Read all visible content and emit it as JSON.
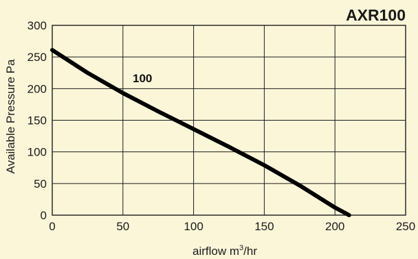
{
  "chart_data": {
    "type": "line",
    "title": "AXR100",
    "xlabel": "airflow m",
    "xlabel_sup": "3",
    "xlabel_suffix": "/hr",
    "ylabel": "Available Pressure Pa",
    "xlim": [
      0,
      250
    ],
    "ylim": [
      0,
      300
    ],
    "xticks": [
      "0",
      "50",
      "100",
      "150",
      "200",
      "250"
    ],
    "yticks": [
      "0",
      "50",
      "100",
      "150",
      "200",
      "250",
      "300"
    ],
    "grid": true,
    "series": [
      {
        "name": "100",
        "color": "#000000",
        "x": [
          0,
          25,
          50,
          75,
          100,
          125,
          150,
          175,
          200,
          210
        ],
        "y": [
          261,
          225,
          193,
          164,
          136,
          108,
          79,
          47,
          12,
          0
        ]
      }
    ]
  }
}
